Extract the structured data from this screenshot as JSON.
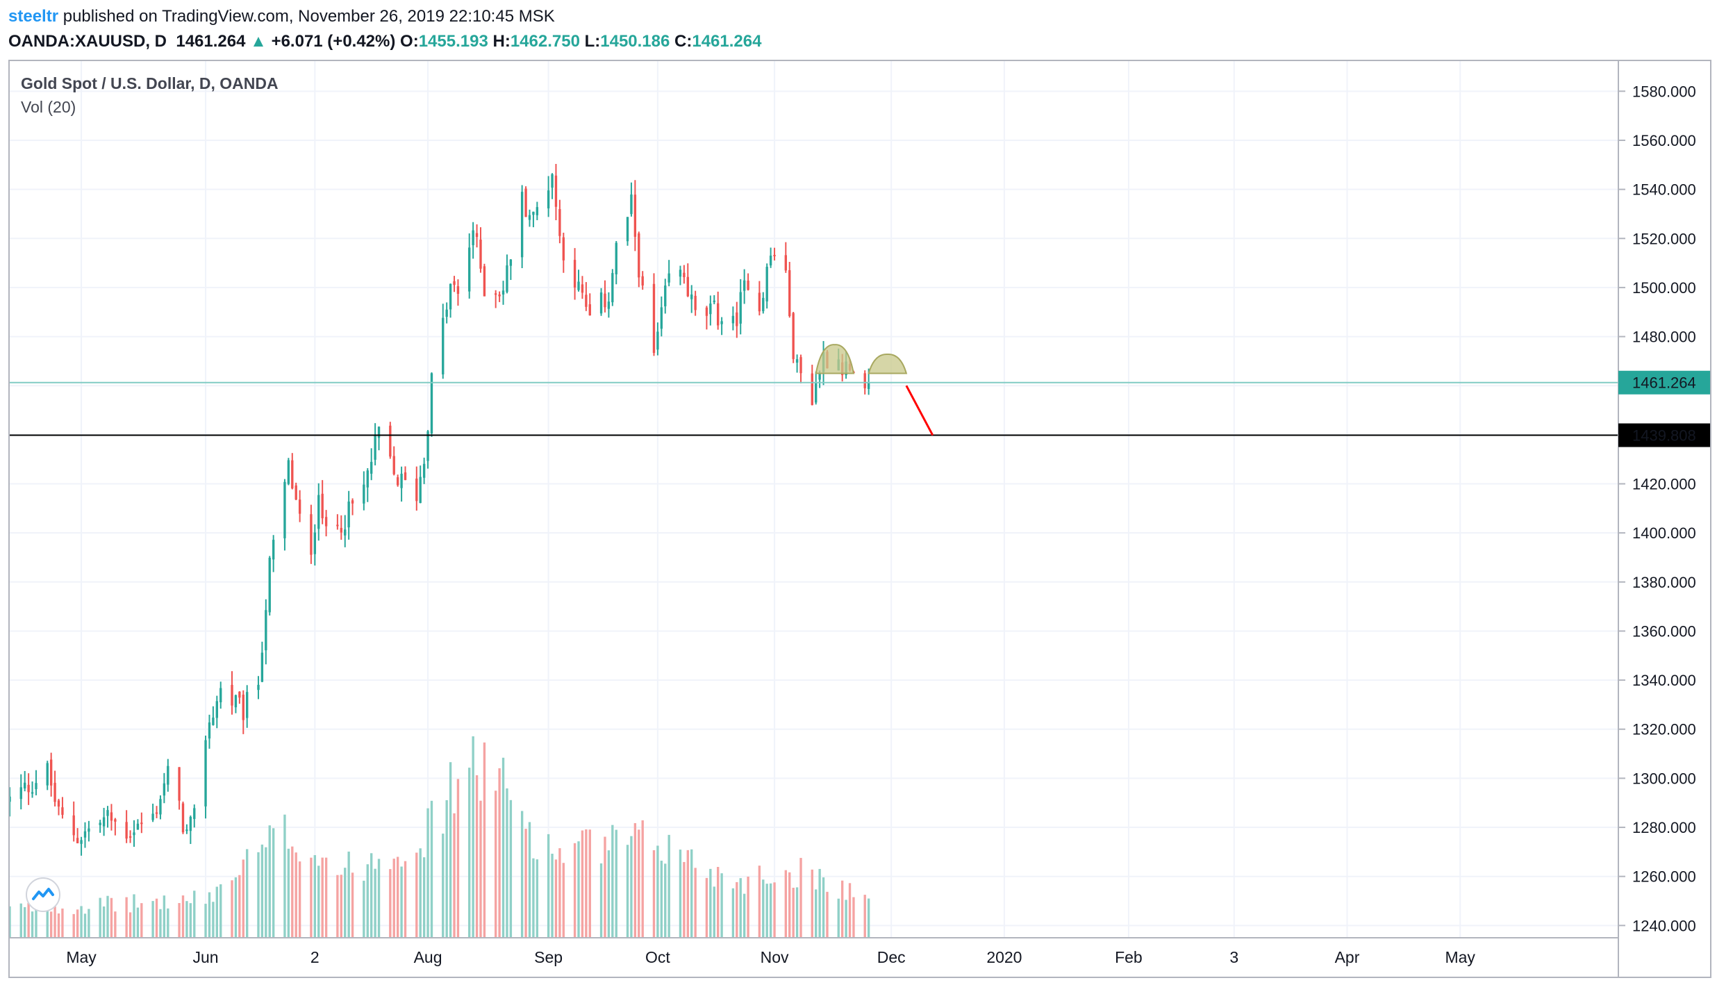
{
  "header": {
    "author": "steeltr",
    "published": " published on TradingView.com, November 26, 2019 22:10:45 MSK",
    "symbol": "OANDA:XAUUSD, D",
    "last": "1461.264",
    "arrow": "▲",
    "change": "+6.071 (+0.42%)",
    "o_label": "O:",
    "o_value": "1455.193",
    "h_label": "H:",
    "h_value": "1462.750",
    "l_label": "L:",
    "l_value": "1450.186",
    "c_label": "C:",
    "c_value": "1461.264"
  },
  "legend": {
    "title": "Gold Spot / U.S. Dollar, D, OANDA",
    "indicator": "Vol (20)"
  },
  "colors": {
    "up": "#26a69a",
    "down": "#ef5350",
    "vol_up": "#8fd0c7",
    "vol_down": "#f5a3a2",
    "grid": "#f0f3fa",
    "last_price_line": "#80cbc4",
    "level_line": "#000000",
    "pattern_fill": "#c8c88a",
    "projection_line": "#ff0000"
  },
  "chart_data": {
    "type": "candlestick",
    "title": "Gold Spot / U.S. Dollar, D, OANDA",
    "ylim": [
      1235,
      1590
    ],
    "y_ticks": [
      "1580.000",
      "1560.000",
      "1540.000",
      "1520.000",
      "1500.000",
      "1480.000",
      "1460.000",
      "1440.000",
      "1420.000",
      "1400.000",
      "1380.000",
      "1360.000",
      "1340.000",
      "1320.000",
      "1300.000",
      "1280.000",
      "1260.000",
      "1240.000"
    ],
    "x_range": [
      "2019-04-12",
      "2020-06-12"
    ],
    "x_ticks": [
      {
        "label": "May",
        "date": "2019-05-01"
      },
      {
        "label": "Jun",
        "date": "2019-06-03"
      },
      {
        "label": "2",
        "date": "2019-07-02"
      },
      {
        "label": "Aug",
        "date": "2019-08-01"
      },
      {
        "label": "Sep",
        "date": "2019-09-02"
      },
      {
        "label": "Oct",
        "date": "2019-10-01"
      },
      {
        "label": "Nov",
        "date": "2019-11-01"
      },
      {
        "label": "Dec",
        "date": "2019-12-02"
      },
      {
        "label": "2020",
        "date": "2020-01-01"
      },
      {
        "label": "Feb",
        "date": "2020-02-03"
      },
      {
        "label": "3",
        "date": "2020-03-02"
      },
      {
        "label": "Apr",
        "date": "2020-04-01"
      },
      {
        "label": "May",
        "date": "2020-05-01"
      }
    ],
    "close_keypoints": [
      {
        "date": "2019-04-12",
        "value": 1291
      },
      {
        "date": "2019-04-22",
        "value": 1303
      },
      {
        "date": "2019-04-25",
        "value": 1285
      },
      {
        "date": "2019-04-30",
        "value": 1276
      },
      {
        "date": "2019-05-08",
        "value": 1284
      },
      {
        "date": "2019-05-13",
        "value": 1278
      },
      {
        "date": "2019-05-20",
        "value": 1284
      },
      {
        "date": "2019-05-24",
        "value": 1302
      },
      {
        "date": "2019-05-29",
        "value": 1277
      },
      {
        "date": "2019-05-31",
        "value": 1283
      },
      {
        "date": "2019-06-03",
        "value": 1318
      },
      {
        "date": "2019-06-07",
        "value": 1336
      },
      {
        "date": "2019-06-13",
        "value": 1327
      },
      {
        "date": "2019-06-17",
        "value": 1340
      },
      {
        "date": "2019-06-20",
        "value": 1386
      },
      {
        "date": "2019-06-25",
        "value": 1427
      },
      {
        "date": "2019-06-28",
        "value": 1405
      },
      {
        "date": "2019-07-01",
        "value": 1388
      },
      {
        "date": "2019-07-03",
        "value": 1420
      },
      {
        "date": "2019-07-05",
        "value": 1398
      },
      {
        "date": "2019-07-11",
        "value": 1408
      },
      {
        "date": "2019-07-15",
        "value": 1418
      },
      {
        "date": "2019-07-19",
        "value": 1441
      },
      {
        "date": "2019-07-23",
        "value": 1423
      },
      {
        "date": "2019-07-29",
        "value": 1416
      },
      {
        "date": "2019-07-31",
        "value": 1430
      },
      {
        "date": "2019-08-02",
        "value": 1462
      },
      {
        "date": "2019-08-07",
        "value": 1500
      },
      {
        "date": "2019-08-09",
        "value": 1497
      },
      {
        "date": "2019-08-13",
        "value": 1524
      },
      {
        "date": "2019-08-16",
        "value": 1500
      },
      {
        "date": "2019-08-21",
        "value": 1499
      },
      {
        "date": "2019-08-26",
        "value": 1536
      },
      {
        "date": "2019-08-29",
        "value": 1528
      },
      {
        "date": "2019-09-03",
        "value": 1547
      },
      {
        "date": "2019-09-05",
        "value": 1520
      },
      {
        "date": "2019-09-10",
        "value": 1499
      },
      {
        "date": "2019-09-13",
        "value": 1487
      },
      {
        "date": "2019-09-18",
        "value": 1497
      },
      {
        "date": "2019-09-20",
        "value": 1516
      },
      {
        "date": "2019-09-24",
        "value": 1533
      },
      {
        "date": "2019-09-27",
        "value": 1497
      },
      {
        "date": "2019-09-30",
        "value": 1472
      },
      {
        "date": "2019-10-04",
        "value": 1504
      },
      {
        "date": "2019-10-08",
        "value": 1505
      },
      {
        "date": "2019-10-11",
        "value": 1488
      },
      {
        "date": "2019-10-16",
        "value": 1490
      },
      {
        "date": "2019-10-21",
        "value": 1484
      },
      {
        "date": "2019-10-25",
        "value": 1504
      },
      {
        "date": "2019-10-28",
        "value": 1493
      },
      {
        "date": "2019-10-31",
        "value": 1513
      },
      {
        "date": "2019-11-04",
        "value": 1509
      },
      {
        "date": "2019-11-05",
        "value": 1484
      },
      {
        "date": "2019-11-07",
        "value": 1467
      },
      {
        "date": "2019-11-11",
        "value": 1456
      },
      {
        "date": "2019-11-14",
        "value": 1472
      },
      {
        "date": "2019-11-18",
        "value": 1471
      },
      {
        "date": "2019-11-21",
        "value": 1464
      },
      {
        "date": "2019-11-22",
        "value": 1461
      },
      {
        "date": "2019-11-25",
        "value": 1455
      },
      {
        "date": "2019-11-26",
        "value": 1461.264
      }
    ],
    "volume_keypoints": [
      {
        "date": "2019-04-12",
        "value": 0.15
      },
      {
        "date": "2019-05-15",
        "value": 0.18
      },
      {
        "date": "2019-06-03",
        "value": 0.2
      },
      {
        "date": "2019-06-24",
        "value": 0.55
      },
      {
        "date": "2019-07-10",
        "value": 0.35
      },
      {
        "date": "2019-08-01",
        "value": 0.55
      },
      {
        "date": "2019-08-13",
        "value": 0.98
      },
      {
        "date": "2019-09-02",
        "value": 0.45
      },
      {
        "date": "2019-10-01",
        "value": 0.5
      },
      {
        "date": "2019-10-20",
        "value": 0.3
      },
      {
        "date": "2019-11-10",
        "value": 0.35
      },
      {
        "date": "2019-11-26",
        "value": 0.2
      }
    ],
    "last_price": 1461.264,
    "last_price_label": "1461.264",
    "level": 1439.808,
    "level_label": "1439.808",
    "cursor_date": "2019-12-03"
  },
  "annotations": {
    "pattern_arc_1": {
      "start": "2019-11-12",
      "end": "2019-11-22",
      "base": 1465,
      "top": 1474
    },
    "pattern_arc_2": {
      "start": "2019-11-26",
      "end": "2019-12-06",
      "base": 1465,
      "top": 1471
    },
    "projection": {
      "start_date": "2019-12-06",
      "start_value": 1460,
      "end_date": "2019-12-13",
      "end_value": 1439.808
    }
  }
}
